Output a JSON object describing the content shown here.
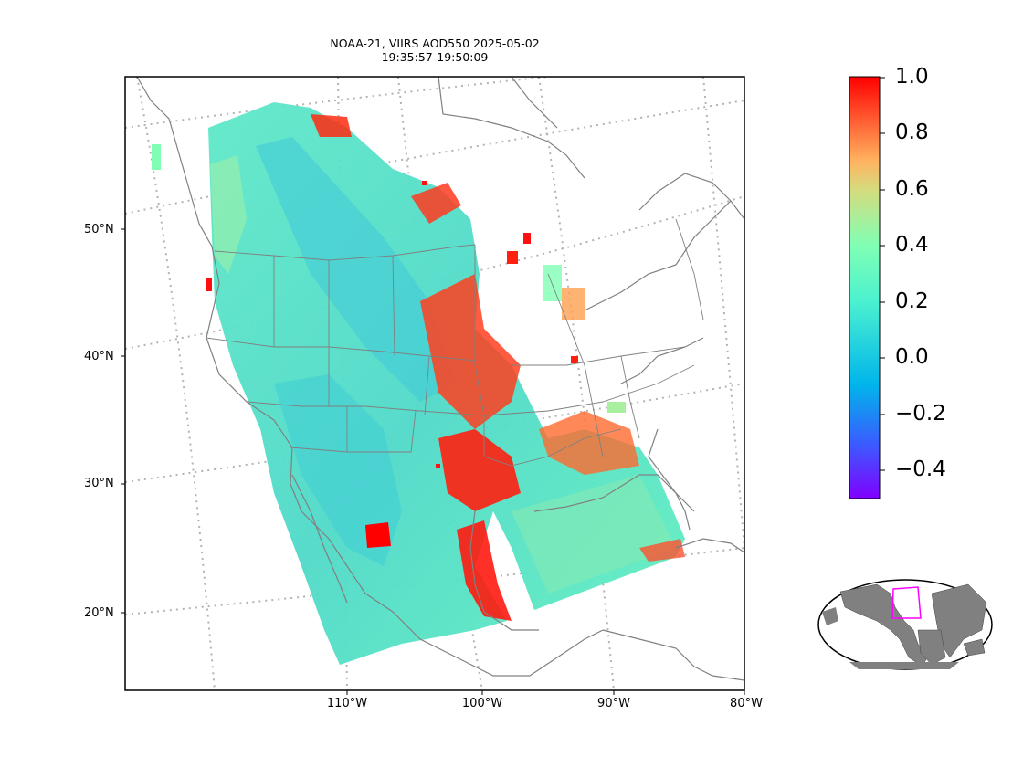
{
  "title": {
    "line1": "NOAA-21, VIIRS AOD550 2025-05-02",
    "line2": "19:35:57-19:50:09"
  },
  "map": {
    "latitude_labels": [
      "50°N",
      "40°N",
      "30°N",
      "20°N"
    ],
    "longitude_labels": [
      "110°W",
      "100°W",
      "90°W",
      "80°W"
    ],
    "colors": {
      "coastline": "#808080",
      "graticule": "#b3b3b3",
      "frame": "#000000"
    }
  },
  "colorbar": {
    "colormap": "rainbow",
    "range": [
      -0.5,
      1.0
    ],
    "tick_labels": [
      "1.0",
      "0.8",
      "0.6",
      "0.4",
      "0.2",
      "0.0",
      "−0.2",
      "−0.4"
    ],
    "tick_values": [
      1.0,
      0.8,
      0.6,
      0.4,
      0.2,
      0.0,
      -0.2,
      -0.4
    ],
    "color_stops": [
      "#8000ff",
      "#00b5eb",
      "#80ffb4",
      "#ffb360",
      "#ff0000"
    ]
  },
  "inset": {
    "land_color": "#808080",
    "ocean_color": "#ffffff",
    "box_color": "#ff00ff"
  }
}
